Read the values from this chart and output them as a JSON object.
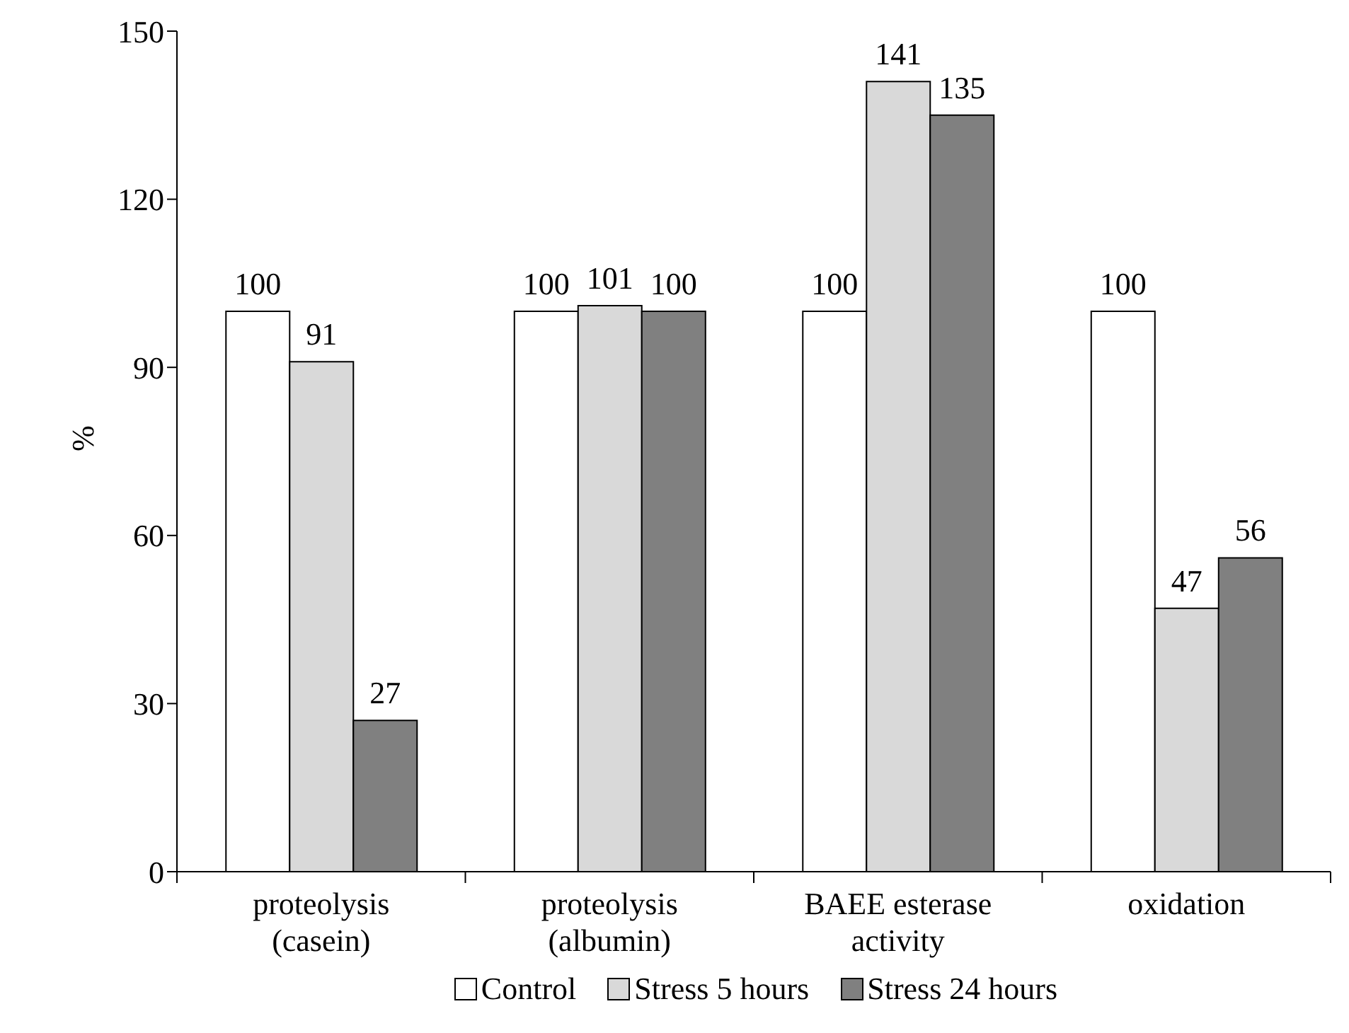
{
  "chart_data": {
    "type": "bar",
    "ylabel": "%",
    "categories": [
      "proteolysis (casein)",
      "proteolysis (albumin)",
      "BAEE esterase activity",
      "oxidation"
    ],
    "series": [
      {
        "name": "Control",
        "color": "#ffffff",
        "values": [
          100,
          100,
          100,
          100
        ]
      },
      {
        "name": "Stress 5 hours",
        "color": "#d9d9d9",
        "values": [
          91,
          101,
          141,
          47
        ]
      },
      {
        "name": "Stress 24 hours",
        "color": "#808080",
        "values": [
          27,
          100,
          135,
          56
        ]
      }
    ],
    "ylim": [
      0,
      150
    ],
    "yticks": [
      0,
      30,
      60,
      90,
      120,
      150
    ],
    "data_labels": true,
    "grid": false,
    "legend": "bottom"
  }
}
